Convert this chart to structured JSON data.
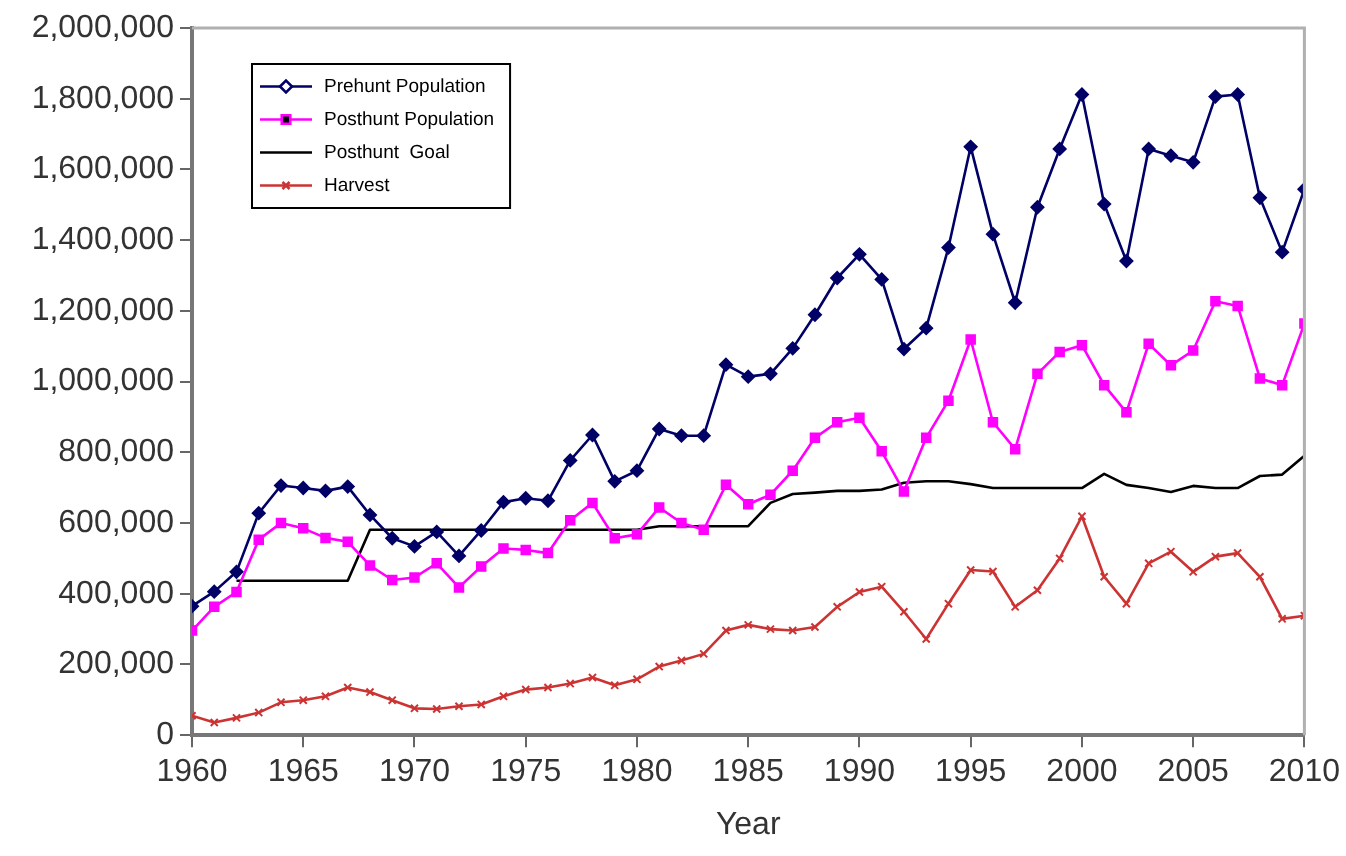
{
  "chart_data": {
    "type": "line",
    "xlabel": "Year",
    "x": [
      1960,
      1961,
      1962,
      1963,
      1964,
      1965,
      1966,
      1967,
      1968,
      1969,
      1970,
      1971,
      1972,
      1973,
      1974,
      1975,
      1976,
      1977,
      1978,
      1979,
      1980,
      1981,
      1982,
      1983,
      1984,
      1985,
      1986,
      1987,
      1988,
      1989,
      1990,
      1991,
      1992,
      1993,
      1994,
      1995,
      1996,
      1997,
      1998,
      1999,
      2000,
      2001,
      2002,
      2003,
      2004,
      2005,
      2006,
      2007,
      2008,
      2009,
      2010
    ],
    "xlim": [
      1960,
      2010
    ],
    "xticks": [
      1960,
      1965,
      1970,
      1975,
      1980,
      1985,
      1990,
      1995,
      2000,
      2005,
      2010
    ],
    "ylim": [
      0,
      2000000
    ],
    "yticks": [
      {
        "value": 0,
        "label": "0"
      },
      {
        "value": 200000,
        "label": "200,000"
      },
      {
        "value": 400000,
        "label": "400,000"
      },
      {
        "value": 600000,
        "label": "600,000"
      },
      {
        "value": 800000,
        "label": "800,000"
      },
      {
        "value": 1000000,
        "label": "1,000,000"
      },
      {
        "value": 1200000,
        "label": "1,200,000"
      },
      {
        "value": 1400000,
        "label": "1,400,000"
      },
      {
        "value": 1600000,
        "label": "1,600,000"
      },
      {
        "value": 1800000,
        "label": "1,800,000"
      },
      {
        "value": 2000000,
        "label": "2,000,000"
      }
    ],
    "grid": false,
    "legend": "top left",
    "line_style": "solid",
    "series": [
      {
        "name": "Prehunt Population",
        "color": "#000066",
        "marker": "diamond",
        "values": [
          365000,
          406000,
          462000,
          628000,
          706000,
          699000,
          691000,
          703000,
          623000,
          557000,
          534000,
          575000,
          507000,
          579000,
          659000,
          670000,
          663000,
          777000,
          849000,
          718000,
          748000,
          866000,
          847000,
          847000,
          1048000,
          1014000,
          1022000,
          1094000,
          1189000,
          1293000,
          1360000,
          1289000,
          1092000,
          1151000,
          1379000,
          1664000,
          1417000,
          1223000,
          1493000,
          1658000,
          1812000,
          1502000,
          1341000,
          1658000,
          1639000,
          1620000,
          1806000,
          1812000,
          1520000,
          1366000,
          1544000
        ]
      },
      {
        "name": "Posthunt Population",
        "color": "#ff00ff",
        "marker": "square",
        "values": [
          296000,
          363000,
          405000,
          553000,
          600000,
          585000,
          558000,
          547000,
          480000,
          439000,
          446000,
          486000,
          418000,
          477000,
          528000,
          524000,
          515000,
          608000,
          657000,
          557000,
          568000,
          644000,
          600000,
          581000,
          708000,
          653000,
          680000,
          748000,
          841000,
          885000,
          898000,
          803000,
          689000,
          841000,
          946000,
          1119000,
          885000,
          809000,
          1022000,
          1084000,
          1103000,
          990000,
          913000,
          1107000,
          1046000,
          1088000,
          1227000,
          1214000,
          1009000,
          990000,
          1164000
        ]
      },
      {
        "name": "Posthunt  Goal",
        "color": "#000000",
        "marker": "none",
        "values": [
          null,
          null,
          437000,
          437000,
          437000,
          437000,
          437000,
          437000,
          581000,
          581000,
          581000,
          581000,
          581000,
          581000,
          581000,
          581000,
          581000,
          581000,
          581000,
          581000,
          581000,
          591000,
          591000,
          591000,
          591000,
          591000,
          657000,
          682000,
          686000,
          691000,
          691000,
          695000,
          714000,
          718000,
          718000,
          710000,
          699000,
          699000,
          699000,
          699000,
          699000,
          739000,
          708000,
          699000,
          688000,
          705000,
          699000,
          699000,
          733000,
          737000,
          790000
        ]
      },
      {
        "name": "Harvest",
        "color": "#cc3333",
        "marker": "cross",
        "values": [
          55000,
          36000,
          49000,
          64000,
          93000,
          99000,
          110000,
          135000,
          122000,
          99000,
          76000,
          74000,
          82000,
          87000,
          110000,
          129000,
          135000,
          146000,
          163000,
          141000,
          158000,
          194000,
          211000,
          230000,
          296000,
          312000,
          300000,
          296000,
          306000,
          363000,
          405000,
          420000,
          349000,
          272000,
          372000,
          467000,
          463000,
          363000,
          410000,
          500000,
          619000,
          448000,
          372000,
          486000,
          519000,
          462000,
          505000,
          515000,
          448000,
          329000,
          338000
        ]
      }
    ]
  }
}
